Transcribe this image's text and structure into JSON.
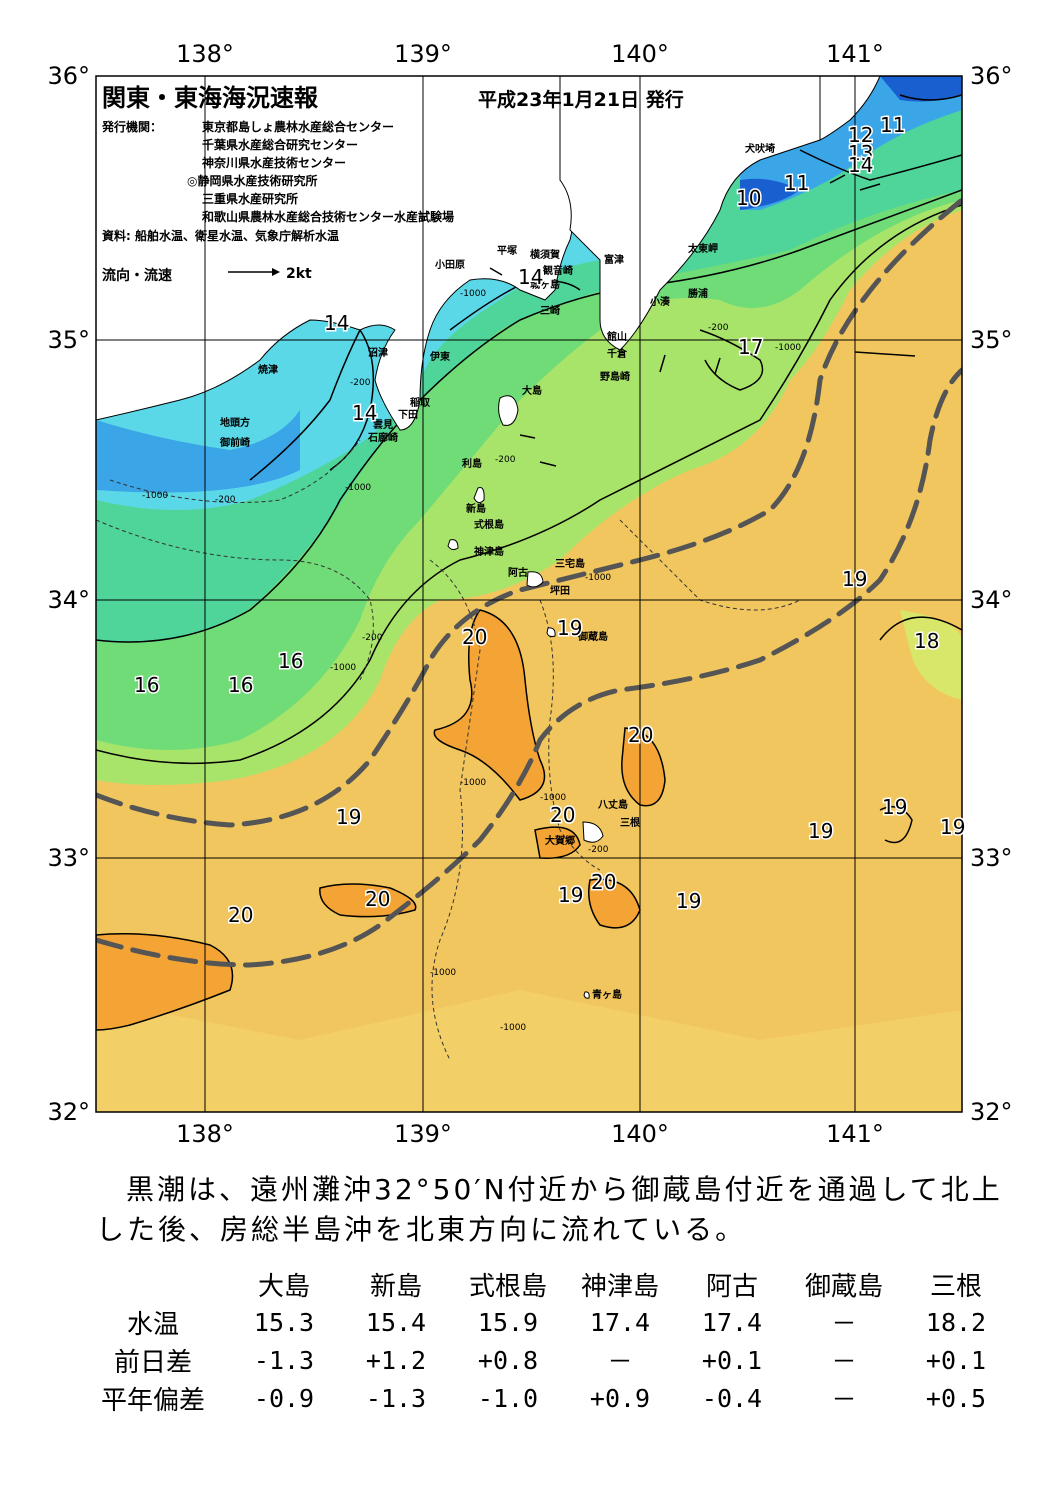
{
  "title": "関東・東海海況速報",
  "issue_date": "平成23年1月21日 発行",
  "publisher_label": "発行機関：",
  "publishers": [
    "東京都島しょ農林水産総合センター",
    "千葉県水産総合研究センター",
    "神奈川県水産技術センター",
    "◎静岡県水産技術研究所",
    "三重県水産研究所",
    "和歌山県農林水産総合技術センター水産試験場"
  ],
  "source": "資料: 船舶水温、衛星水温、気象庁解析水温",
  "flow_legend": {
    "label": "流向・流速",
    "unit": "2kt"
  },
  "axes": {
    "lon_labels": [
      "138°",
      "139°",
      "140°",
      "141°"
    ],
    "lat_labels": [
      "36°",
      "35°",
      "34°",
      "33°",
      "32°"
    ]
  },
  "place_names": [
    "犬吠埼",
    "太東岬",
    "勝浦",
    "小湊",
    "富津",
    "横須賀",
    "観音崎",
    "平塚",
    "城ヶ島",
    "三崎",
    "小田原",
    "館山",
    "千倉",
    "野島崎",
    "沼津",
    "伊東",
    "焼津",
    "稲取",
    "下田",
    "雲見",
    "石廊崎",
    "地頭方",
    "御前崎",
    "大島",
    "利島",
    "新島",
    "式根島",
    "神津島",
    "阿古",
    "三宅島",
    "坪田",
    "御蔵島",
    "八丈島",
    "三根",
    "大賀郷",
    "青ヶ島"
  ],
  "isotherm_labels": [
    "14",
    "14",
    "14",
    "11",
    "12",
    "13",
    "14",
    "10",
    "11",
    "17",
    "16",
    "16",
    "16",
    "20",
    "19",
    "19",
    "20",
    "20",
    "20",
    "20",
    "20",
    "19",
    "19",
    "19",
    "19",
    "19",
    "19",
    "18"
  ],
  "depth_labels": [
    "-200",
    "-1000"
  ],
  "summary": "黒潮は、遠州灘沖32°50′N付近から御蔵島付近を通過して北上した後、房総半島沖を北東方向に流れている。",
  "table": {
    "columns": [
      "大島",
      "新島",
      "式根島",
      "神津島",
      "阿古",
      "御蔵島",
      "三根"
    ],
    "rows": [
      {
        "label": "水温",
        "values": [
          "15.3",
          "15.4",
          "15.9",
          "17.4",
          "17.4",
          "－",
          "18.2"
        ]
      },
      {
        "label": "前日差",
        "values": [
          "-1.3",
          "+1.2",
          "+0.8",
          "－",
          "+0.1",
          "－",
          "+0.1"
        ]
      },
      {
        "label": "平年偏差",
        "values": [
          "-0.9",
          "-1.3",
          "-1.0",
          "+0.9",
          "-0.4",
          "－",
          "+0.5"
        ]
      }
    ]
  },
  "colors": {
    "land": "#ffffff",
    "cold_10": "#1a5fd0",
    "cold_12": "#3aa6e8",
    "water_14": "#5bd8e8",
    "water_15": "#4fd49a",
    "water_16": "#6fdc78",
    "water_17": "#a8e46a",
    "water_18": "#d8e66a",
    "water_19": "#f2c65e",
    "water_20": "#f3a434",
    "kuroshio_axis": "#555555"
  }
}
